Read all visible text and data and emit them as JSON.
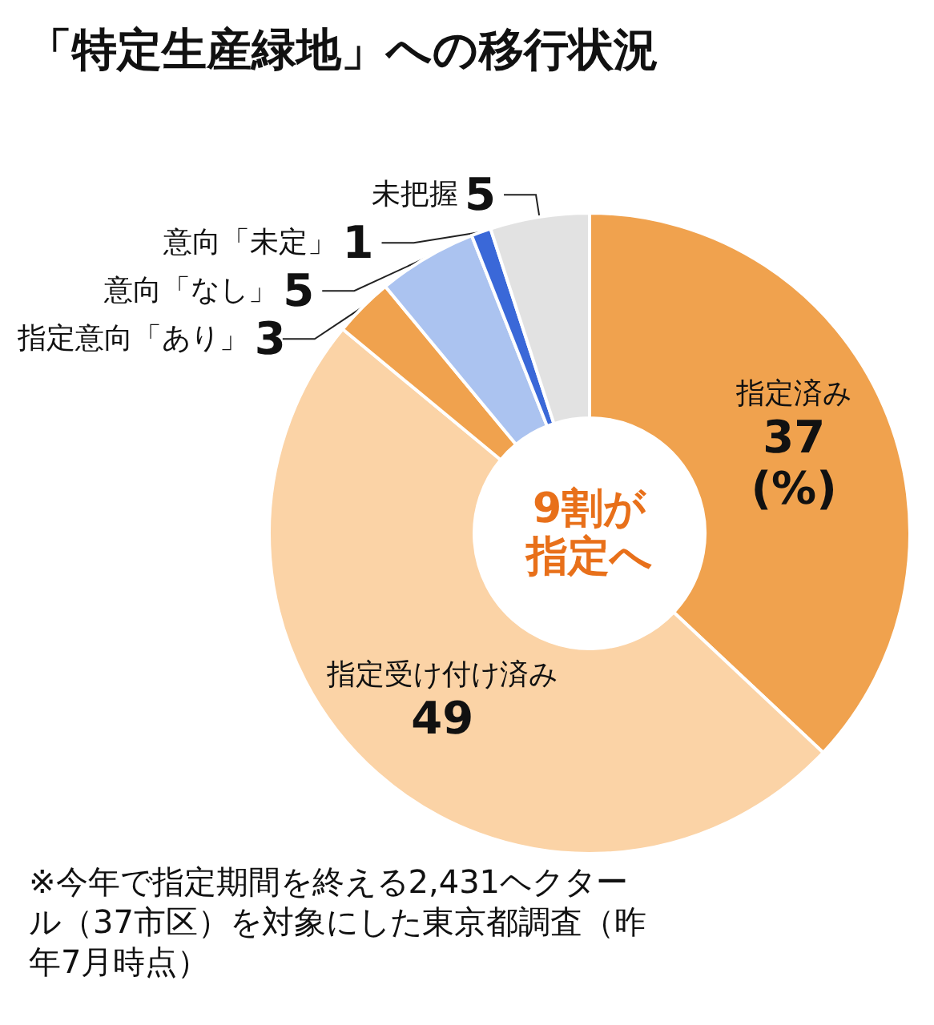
{
  "chart_data": {
    "type": "donut",
    "title": "「特定生産緑地」への移行状況",
    "categories": [
      "指定済み",
      "指定受け付け済み",
      "指定意向「あり」",
      "意向「なし」",
      "意向「未定」",
      "未把握"
    ],
    "values": [
      37,
      49,
      3,
      5,
      1,
      5
    ],
    "value_labels": [
      "37\n(%)",
      "49",
      "3",
      "5",
      "1",
      "5"
    ],
    "colors": [
      "#f0a24e",
      "#fbd3a6",
      "#f0a24e",
      "#abc3f0",
      "#3a68d8",
      "#e2e2e2"
    ],
    "legend": false,
    "annotations": [
      "9割が指定へ",
      "※今年で指定期間を終える2,431ヘクタール（37市区）を対象にした東京都調査（昨年7月時点）"
    ]
  }
}
